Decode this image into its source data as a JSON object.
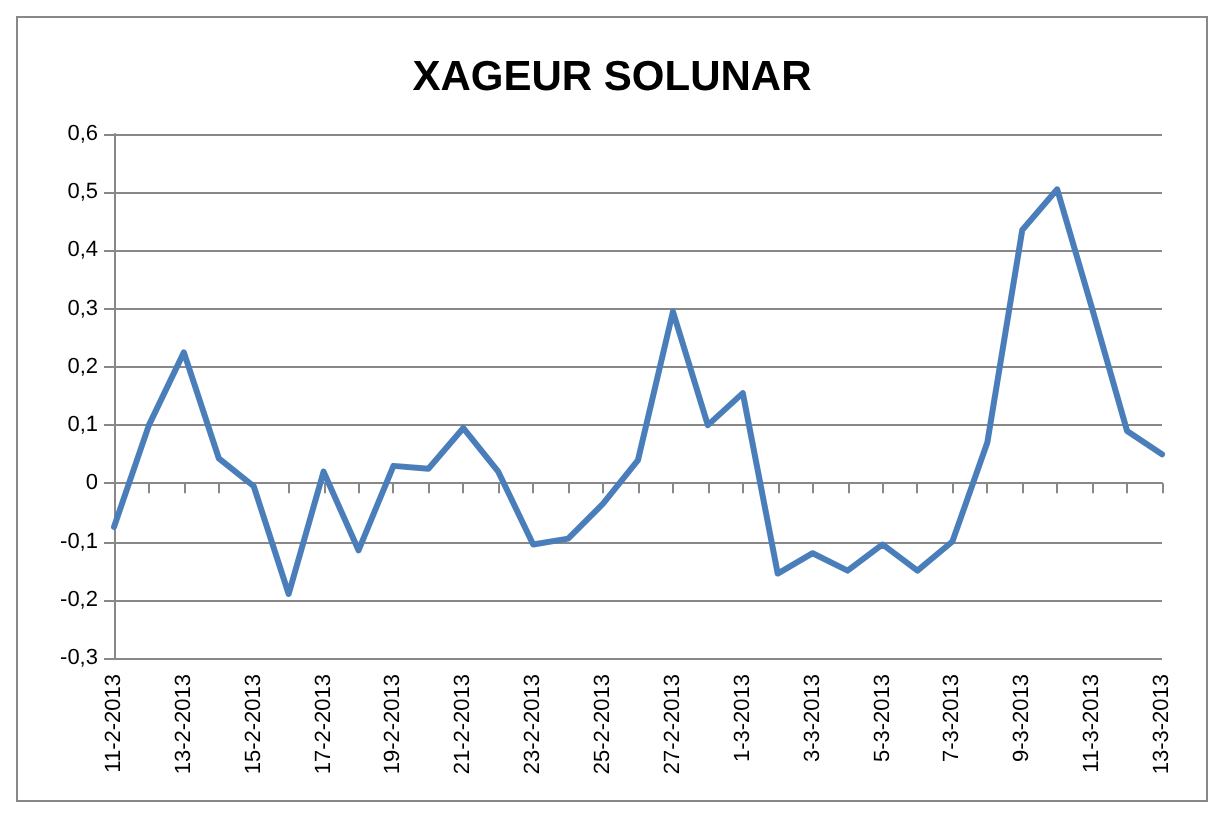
{
  "chart_data": {
    "type": "line",
    "title": "XAGEUR SOLUNAR",
    "categories": [
      "11-2-2013",
      null,
      "13-2-2013",
      null,
      "15-2-2013",
      null,
      "17-2-2013",
      null,
      "19-2-2013",
      null,
      "21-2-2013",
      null,
      "23-2-2013",
      null,
      "25-2-2013",
      null,
      "27-2-2013",
      null,
      "1-3-2013",
      null,
      "3-3-2013",
      null,
      "5-3-2013",
      null,
      "7-3-2013",
      null,
      "9-3-2013",
      null,
      "11-3-2013",
      null,
      "13-3-2013"
    ],
    "series": [
      {
        "color": "#4a7ebb",
        "values": [
          -0.075,
          0.1,
          0.225,
          0.043,
          -0.005,
          -0.19,
          0.02,
          -0.115,
          0.03,
          0.025,
          0.095,
          0.02,
          -0.105,
          -0.095,
          -0.035,
          0.04,
          0.295,
          0.1,
          0.155,
          -0.155,
          -0.12,
          -0.15,
          -0.105,
          -0.15,
          -0.1,
          0.07,
          0.435,
          0.505,
          0.3,
          0.09,
          0.05
        ]
      }
    ],
    "ylim": [
      -0.3,
      0.6
    ],
    "yticks": [
      {
        "value": -0.3,
        "label": "-0,3"
      },
      {
        "value": -0.2,
        "label": "-0,2"
      },
      {
        "value": -0.1,
        "label": "-0,1"
      },
      {
        "value": 0,
        "label": "0"
      },
      {
        "value": 0.1,
        "label": "0,1"
      },
      {
        "value": 0.2,
        "label": "0,2"
      },
      {
        "value": 0.3,
        "label": "0,3"
      },
      {
        "value": 0.4,
        "label": "0,4"
      },
      {
        "value": 0.5,
        "label": "0,5"
      },
      {
        "value": 0.6,
        "label": "0,6"
      }
    ],
    "grid": "y",
    "marker": "none",
    "line_style": "solid"
  }
}
